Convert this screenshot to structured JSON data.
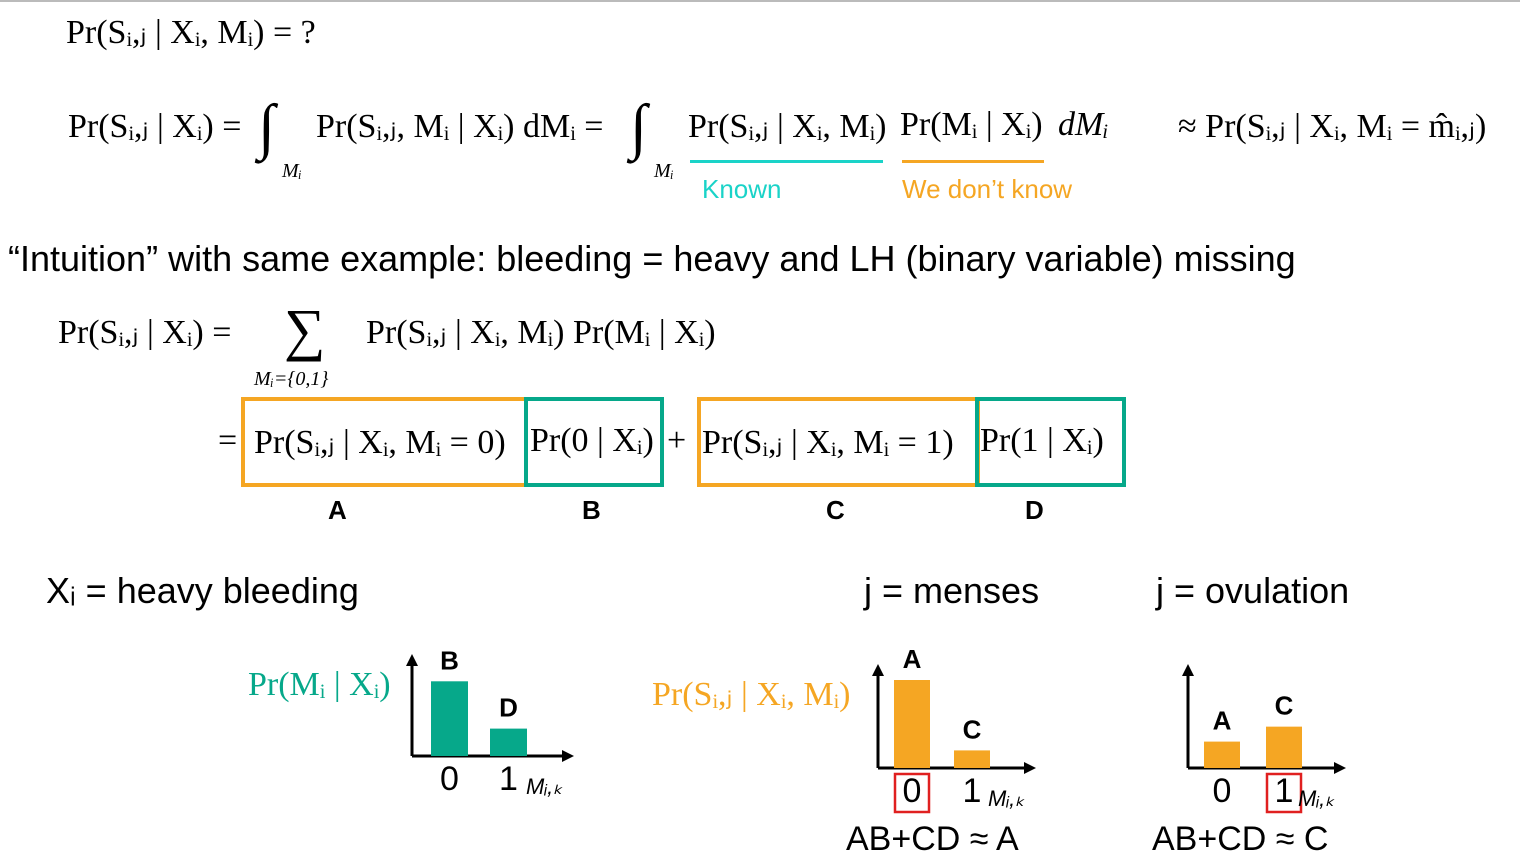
{
  "line1": "Pr(Sᵢ,ⱼ | Xᵢ, Mᵢ) = ?",
  "eq_main": {
    "lhs": "Pr(Sᵢ,ⱼ | Xᵢ) =",
    "int1": "∫",
    "int1_sub": "Mᵢ",
    "term1": "Pr(Sᵢ,ⱼ, Mᵢ | Xᵢ)  dMᵢ  =",
    "int2": "∫",
    "int2_sub": "Mᵢ",
    "term_known": "Pr(Sᵢ,ⱼ | Xᵢ, Mᵢ)",
    "term_unknown": "Pr(Mᵢ | Xᵢ)",
    "dm": "dMᵢ",
    "approx": "≈ Pr(Sᵢ,ⱼ | Xᵢ, Mᵢ = m̂ᵢ,ⱼ)",
    "known_label": "Known",
    "unknown_label": "We don’t know"
  },
  "intuition": "“Intuition” with same example: bleeding = heavy and LH (binary variable) missing",
  "sum_eq": {
    "lhs": "Pr(Sᵢ,ⱼ | Xᵢ) =",
    "sigma": "∑",
    "sigma_sub": "Mᵢ={0,1}",
    "rhs": "Pr(Sᵢ,ⱼ | Xᵢ, Mᵢ) Pr(Mᵢ | Xᵢ)"
  },
  "expansion": {
    "eq": "=",
    "a": "Pr(Sᵢ,ⱼ | Xᵢ, Mᵢ = 0)",
    "b": "Pr(0 | Xᵢ)",
    "plus": "+",
    "c": "Pr(Sᵢ,ⱼ | Xᵢ, Mᵢ = 1)",
    "d": "Pr(1 | Xᵢ)",
    "labels": [
      "A",
      "B",
      "C",
      "D"
    ]
  },
  "sections": {
    "xi": "Xᵢ = heavy bleeding",
    "menses": "j = menses",
    "ovulation": "j = ovulation"
  },
  "chart_data": [
    {
      "type": "bar",
      "title": "Pr(Mᵢ | Xᵢ)",
      "categories": [
        "0",
        "1"
      ],
      "values": [
        0.9,
        0.33
      ],
      "bar_labels": [
        "B",
        "D"
      ],
      "xlabel": "Mᵢ,ₖ",
      "color": "#06a88a"
    },
    {
      "type": "bar",
      "title": "Pr(Sᵢ,ⱼ | Xᵢ, Mᵢ)",
      "categories": [
        "0",
        "1"
      ],
      "values": [
        1.0,
        0.2
      ],
      "bar_labels": [
        "A",
        "C"
      ],
      "xlabel": "Mᵢ,ₖ",
      "highlighted_category": "0",
      "caption": "AB+CD ≈  A",
      "color": "#f5a623"
    },
    {
      "type": "bar",
      "categories": [
        "0",
        "1"
      ],
      "values": [
        0.3,
        0.47
      ],
      "bar_labels": [
        "A",
        "C"
      ],
      "xlabel": "Mᵢ,ₖ",
      "highlighted_category": "1",
      "caption": "AB+CD ≈  C",
      "color": "#f5a623"
    }
  ],
  "colors": {
    "teal": "#06a88a",
    "orange": "#f5a623",
    "cyan": "#1ad3c8",
    "highlight": "#e02020"
  }
}
